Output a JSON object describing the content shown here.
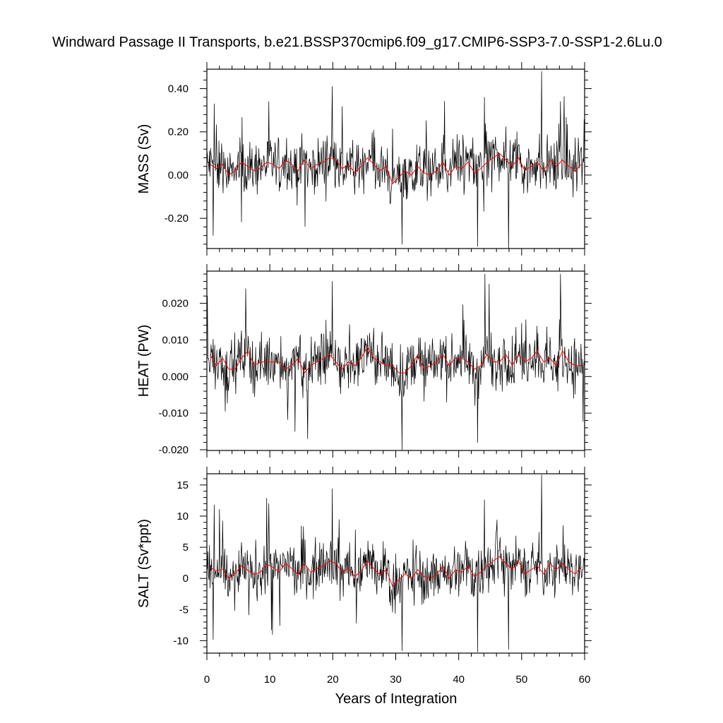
{
  "title": "Windward Passage II Transports, b.e21.BSSP370cmip6.f09_g17.CMIP6-SSP3-7.0-SSP1-2.6Lu.0",
  "chart_data": {
    "type": "line",
    "title": "Windward Passage II Transports, b.e21.BSSP370cmip6.f09_g17.CMIP6-SSP3-7.0-SSP1-2.6Lu.0",
    "xlabel": "Years of Integration",
    "xlim": [
      0,
      60
    ],
    "xticks": [
      0,
      10,
      20,
      30,
      40,
      50,
      60
    ],
    "xtick_labels": [
      "0",
      "10",
      "20",
      "30",
      "40",
      "50",
      "60"
    ],
    "grid": false,
    "colors": {
      "monthly": "#000000",
      "annual": "#ff0000"
    },
    "panels": [
      {
        "ylabel": "MASS (Sv)",
        "ylim": [
          -0.34,
          0.49
        ],
        "yticks": [
          -0.2,
          0.0,
          0.2,
          0.4
        ],
        "ytick_labels": [
          "-0.20",
          "0.00",
          "0.20",
          "0.40"
        ],
        "annual_x": [
          0.5,
          1.5,
          2.5,
          3.5,
          4.5,
          5.5,
          6.5,
          7.5,
          8.5,
          9.5,
          10.5,
          11.5,
          12.5,
          13.5,
          14.5,
          15.5,
          16.5,
          17.5,
          18.5,
          19.5,
          20.5,
          21.5,
          22.5,
          23.5,
          24.5,
          25.5,
          26.5,
          27.5,
          28.5,
          29.5,
          30.5,
          31.5,
          32.5,
          33.5,
          34.5,
          35.5,
          36.5,
          37.5,
          38.5,
          39.5,
          40.5,
          41.5,
          42.5,
          43.5,
          44.5,
          45.5,
          46.5,
          47.5,
          48.5,
          49.5,
          50.5,
          51.5,
          52.5,
          53.5,
          54.5,
          55.5,
          56.5,
          57.5,
          58.5,
          59.5
        ],
        "annual": [
          0.05,
          0.03,
          0.05,
          0.0,
          0.02,
          0.06,
          0.04,
          0.02,
          0.03,
          0.06,
          0.05,
          0.03,
          0.07,
          0.05,
          0.02,
          0.07,
          0.03,
          0.05,
          0.06,
          0.08,
          0.07,
          0.03,
          0.05,
          0.01,
          0.04,
          0.08,
          0.05,
          0.02,
          0.04,
          -0.04,
          -0.01,
          0.02,
          0.0,
          0.04,
          0.01,
          0.0,
          0.02,
          0.06,
          0.0,
          0.04,
          0.03,
          0.06,
          0.01,
          0.03,
          0.06,
          0.08,
          0.1,
          0.07,
          0.04,
          0.08,
          0.02,
          0.04,
          0.06,
          0.02,
          0.07,
          0.04,
          0.07,
          0.04,
          0.02,
          0.05
        ],
        "monthly_peaks": [
          {
            "x": 1.2,
            "y": 0.33
          },
          {
            "x": 9.8,
            "y": 0.34
          },
          {
            "x": 19.9,
            "y": 0.41
          },
          {
            "x": 44.1,
            "y": 0.36
          },
          {
            "x": 53.2,
            "y": 0.48
          },
          {
            "x": 56.2,
            "y": 0.34
          },
          {
            "x": 31.0,
            "y": -0.32
          },
          {
            "x": 43.0,
            "y": -0.33
          },
          {
            "x": 47.9,
            "y": -0.35
          },
          {
            "x": 1.0,
            "y": -0.28
          }
        ]
      },
      {
        "ylabel": "HEAT (PW)",
        "ylim": [
          -0.0202,
          0.0288
        ],
        "yticks": [
          -0.02,
          -0.01,
          0.0,
          0.01,
          0.02
        ],
        "ytick_labels": [
          "-0.020",
          "-0.010",
          "0.000",
          "0.010",
          "0.020"
        ],
        "annual_x": [
          0.5,
          1.5,
          2.5,
          3.5,
          4.5,
          5.5,
          6.5,
          7.5,
          8.5,
          9.5,
          10.5,
          11.5,
          12.5,
          13.5,
          14.5,
          15.5,
          16.5,
          17.5,
          18.5,
          19.5,
          20.5,
          21.5,
          22.5,
          23.5,
          24.5,
          25.5,
          26.5,
          27.5,
          28.5,
          29.5,
          30.5,
          31.5,
          32.5,
          33.5,
          34.5,
          35.5,
          36.5,
          37.5,
          38.5,
          39.5,
          40.5,
          41.5,
          42.5,
          43.5,
          44.5,
          45.5,
          46.5,
          47.5,
          48.5,
          49.5,
          50.5,
          51.5,
          52.5,
          53.5,
          54.5,
          55.5,
          56.5,
          57.5,
          58.5,
          59.5
        ],
        "annual": [
          0.006,
          0.003,
          0.005,
          0.002,
          0.002,
          0.005,
          0.007,
          0.003,
          0.004,
          0.004,
          0.004,
          0.004,
          0.002,
          0.003,
          0.005,
          0.001,
          0.003,
          0.004,
          0.005,
          0.006,
          0.004,
          0.002,
          0.004,
          0.003,
          0.005,
          0.008,
          0.005,
          0.004,
          0.003,
          0.003,
          0.001,
          0.001,
          0.003,
          0.006,
          0.002,
          0.003,
          0.004,
          0.006,
          0.003,
          0.005,
          0.005,
          0.004,
          0.002,
          0.003,
          0.006,
          0.004,
          0.004,
          0.006,
          0.003,
          0.006,
          0.004,
          0.005,
          0.007,
          0.004,
          0.005,
          0.003,
          0.007,
          0.004,
          0.003,
          0.003
        ],
        "monthly_peaks": [
          {
            "x": 0.1,
            "y": 0.022
          },
          {
            "x": 6.2,
            "y": 0.024
          },
          {
            "x": 19.9,
            "y": 0.026
          },
          {
            "x": 44.2,
            "y": 0.028
          },
          {
            "x": 56.2,
            "y": 0.028
          },
          {
            "x": 31.0,
            "y": -0.02
          },
          {
            "x": 43.0,
            "y": -0.018
          },
          {
            "x": 14.0,
            "y": -0.015
          },
          {
            "x": 16.0,
            "y": -0.017
          }
        ]
      },
      {
        "ylabel": "SALT (Sv*ppt)",
        "ylim": [
          -12.0,
          16.8
        ],
        "yticks": [
          -10,
          -5,
          0,
          5,
          10,
          15
        ],
        "ytick_labels": [
          "-10",
          "-5",
          "0",
          "5",
          "10",
          "15"
        ],
        "annual_x": [
          0.5,
          1.5,
          2.5,
          3.5,
          4.5,
          5.5,
          6.5,
          7.5,
          8.5,
          9.5,
          10.5,
          11.5,
          12.5,
          13.5,
          14.5,
          15.5,
          16.5,
          17.5,
          18.5,
          19.5,
          20.5,
          21.5,
          22.5,
          23.5,
          24.5,
          25.5,
          26.5,
          27.5,
          28.5,
          29.5,
          30.5,
          31.5,
          32.5,
          33.5,
          34.5,
          35.5,
          36.5,
          37.5,
          38.5,
          39.5,
          40.5,
          41.5,
          42.5,
          43.5,
          44.5,
          45.5,
          46.5,
          47.5,
          48.5,
          49.5,
          50.5,
          51.5,
          52.5,
          53.5,
          54.5,
          55.5,
          56.5,
          57.5,
          58.5,
          59.5
        ],
        "annual": [
          1.8,
          1.2,
          1.5,
          0.0,
          0.8,
          2.0,
          1.3,
          0.6,
          1.0,
          2.2,
          1.8,
          1.0,
          2.4,
          1.6,
          0.6,
          2.4,
          1.0,
          1.6,
          2.0,
          2.8,
          2.4,
          1.0,
          1.6,
          0.3,
          1.2,
          2.8,
          1.6,
          0.6,
          1.4,
          -1.3,
          -0.2,
          0.7,
          0.0,
          1.4,
          0.3,
          0.0,
          0.6,
          2.0,
          0.0,
          1.4,
          1.0,
          2.0,
          0.3,
          1.0,
          2.0,
          2.8,
          3.5,
          2.4,
          1.4,
          2.8,
          0.7,
          1.4,
          2.0,
          0.7,
          2.4,
          1.4,
          2.4,
          1.4,
          0.7,
          1.8
        ],
        "monthly_peaks": [
          {
            "x": 1.2,
            "y": 11.8
          },
          {
            "x": 9.8,
            "y": 12.0
          },
          {
            "x": 19.9,
            "y": 14.4
          },
          {
            "x": 44.1,
            "y": 12.6
          },
          {
            "x": 53.2,
            "y": 16.6
          },
          {
            "x": 31.0,
            "y": -11.6
          },
          {
            "x": 43.0,
            "y": -11.8
          },
          {
            "x": 47.9,
            "y": -11.4
          },
          {
            "x": 1.0,
            "y": -9.8
          }
        ]
      }
    ]
  }
}
